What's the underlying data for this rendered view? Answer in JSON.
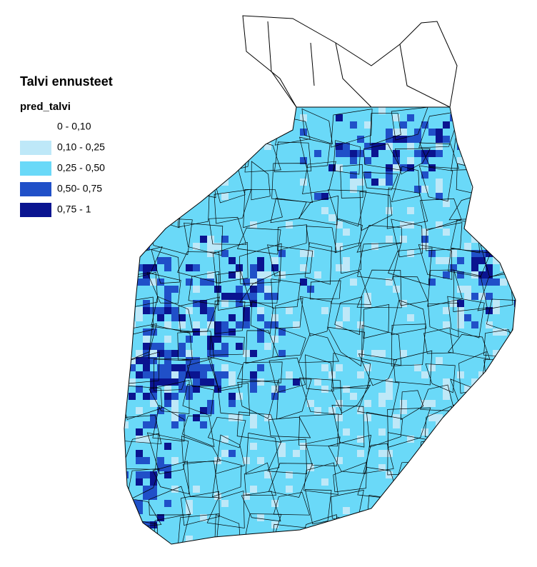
{
  "legend": {
    "title": "Talvi ennusteet",
    "subtitle": "pred_talvi",
    "items": [
      {
        "label": "0 - 0,10",
        "color": "#ffffff"
      },
      {
        "label": "0,10 - 0,25",
        "color": "#bee8f8"
      },
      {
        "label": "0,25 - 0,50",
        "color": "#6ad9f8"
      },
      {
        "label": "0,50- 0,75",
        "color": "#2050c8"
      },
      {
        "label": "0,75 - 1",
        "color": "#0a1490"
      }
    ]
  }
}
